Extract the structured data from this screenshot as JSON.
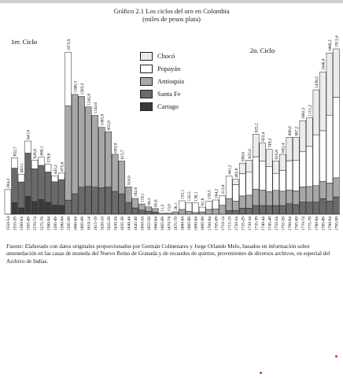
{
  "chart_data": {
    "type": "bar",
    "stacked": true,
    "title": "Gráfico 2.1 Los ciclos del oro en Colombia",
    "subtitle": "(miles de pesos plata)",
    "annotations": [
      "1er. Ciclo",
      "2o. Ciclo"
    ],
    "legend_position": "top-center",
    "categories": [
      "1550-54",
      "1555-59",
      "1560-64",
      "1565-69",
      "1570-74",
      "1575-79",
      "1580-84",
      "1585-89",
      "1590-94",
      "1595-99",
      "1600-04",
      "1605-09",
      "1610-14",
      "1615-19",
      "1620-24",
      "1625-29",
      "1630-34",
      "1635-39",
      "1640-44",
      "1645-49",
      "1650-54",
      "1655-59",
      "1660-64",
      "1665-69",
      "1670-74",
      "1675-79",
      "1680-84",
      "1685-89",
      "1690-94",
      "1695-99",
      "1700-04",
      "1705-09",
      "1710-14",
      "1715-19",
      "1720-24",
      "1725-29",
      "1730-34",
      "1735-39",
      "1740-44",
      "1745-49",
      "1750-54",
      "1755-59",
      "1760-64",
      "1765-69",
      "1770-74",
      "1775-79",
      "1780-84",
      "1785-89",
      "1790-94",
      "1795-99"
    ],
    "totals": [
      284.2,
      652.7,
      463.1,
      847.0,
      626.6,
      660.1,
      578.6,
      445.2,
      475.6,
      1872.9,
      1386.3,
      1363.2,
      1242.6,
      1143.6,
      1005.9,
      953.9,
      693.9,
      615.7,
      316.0,
      182.6,
      118.1,
      84.2,
      65.0,
      11.3,
      13.0,
      28.1,
      155.1,
      132.5,
      130.1,
      81.6,
      150.5,
      164.2,
      213.8,
      441.2,
      402.8,
      590.6,
      625.0,
      925.2,
      822.4,
      749.2,
      616.8,
      692.4,
      889.6,
      887.2,
      1082.2,
      1115.2,
      1439.2,
      1646.4,
      1866.3,
      1913.4
    ],
    "series": [
      {
        "name": "Chocó",
        "color": "#ececec",
        "values": [
          0,
          0,
          0,
          0,
          0,
          0,
          0,
          0,
          0,
          0,
          0,
          0,
          0,
          0,
          0,
          0,
          0,
          0,
          0,
          0,
          0,
          0,
          0,
          0,
          0,
          0,
          0,
          0,
          0,
          0,
          0,
          0,
          0,
          0,
          60,
          120,
          135,
          260,
          210,
          200,
          145,
          185,
          270,
          265,
          360,
          330,
          520,
          680,
          720,
          560
        ]
      },
      {
        "name": "Popayán",
        "color": "#ffffff",
        "values": [
          284.2,
          120,
          90,
          140,
          100,
          95,
          90,
          70,
          75,
          620,
          0,
          0,
          0,
          0,
          0,
          0,
          0,
          0,
          0,
          0,
          0,
          0,
          0,
          0,
          0,
          0,
          100,
          100,
          110,
          55,
          95,
          105,
          110,
          260,
          190,
          260,
          270,
          375,
          332,
          289,
          196,
          242,
          339,
          352,
          407,
          465,
          589,
          586,
          786,
          933
        ]
      },
      {
        "name": "Antioquia",
        "color": "#a8a8a8",
        "values": [
          0,
          0,
          0,
          0,
          0,
          0,
          0,
          0,
          0,
          1090,
          1150,
          1050,
          920,
          830,
          700,
          640,
          430,
          380,
          180,
          110,
          70,
          50,
          40,
          11.3,
          13,
          28.1,
          55.1,
          32.5,
          20.1,
          26.6,
          55.5,
          59.2,
          103.8,
          140,
          110,
          140,
          150,
          190,
          180,
          160,
          176,
          165,
          160,
          160,
          175,
          180,
          190,
          200,
          210,
          220
        ]
      },
      {
        "name": "Santa Fe",
        "color": "#6a6a6a",
        "values": [
          0,
          400,
          300,
          500,
          380,
          395,
          350,
          270,
          300,
          162.9,
          236.3,
          313.2,
          322.6,
          313.6,
          305.9,
          313.9,
          263.9,
          235.7,
          136,
          72.6,
          48.1,
          34.2,
          25,
          0,
          0,
          0,
          0,
          0,
          0,
          0,
          0,
          0,
          0,
          41.2,
          42.8,
          70.6,
          70,
          100.2,
          100.4,
          100.2,
          99.8,
          100.4,
          120.6,
          110.2,
          140.2,
          140.2,
          140.2,
          180.4,
          150.3,
          200.4
        ]
      },
      {
        "name": "Cartago",
        "color": "#3b3b3b",
        "values": [
          0,
          132.7,
          73.1,
          207,
          146.6,
          170.1,
          138.6,
          105.2,
          100.6,
          0,
          0,
          0,
          0,
          0,
          0,
          0,
          0,
          0,
          0,
          0,
          0,
          0,
          0,
          0,
          0,
          0,
          0,
          0,
          0,
          0,
          0,
          0,
          0,
          0,
          0,
          0,
          0,
          0,
          0,
          0,
          0,
          0,
          0,
          0,
          0,
          0,
          0,
          0,
          0,
          0
        ]
      }
    ],
    "ylim": [
      0,
      1950
    ],
    "grid": false
  },
  "footnote": {
    "label": "Fuente",
    "text": ": Elaborado con datos originales proporcionados por Germán Colmenares y Jorge Orlando Melo, basados en información sobre amonedación en las casas de moneda del Nuevo Reino de Granada y de recaudos de quintos, provenientes de diversos archivos, en especial del Archivo de Indias."
  },
  "colors": {
    "background_paper": "#f4f4f4",
    "accent_dots": "#d4332a"
  }
}
